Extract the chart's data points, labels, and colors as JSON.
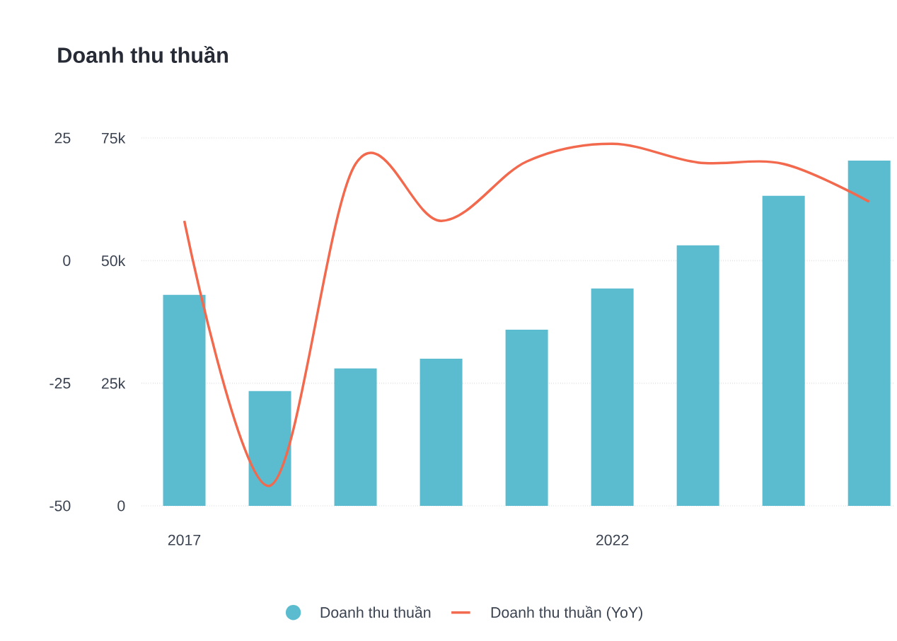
{
  "chart_data": {
    "type": "bar",
    "title": "Doanh thu thuần",
    "categories": [
      "2017",
      null,
      null,
      null,
      null,
      "2022",
      null,
      null,
      null
    ],
    "ylim": [
      0,
      75000
    ],
    "yticks": [
      0,
      {
        "value": 25000,
        "label": "25k"
      },
      {
        "value": 50000,
        "label": "50k"
      },
      {
        "value": 75000,
        "label": "75k"
      }
    ],
    "y2lim": [
      -50,
      25
    ],
    "y2ticks": [
      -50,
      -25,
      0,
      25
    ],
    "grid": "y",
    "legend": "bottom",
    "series": [
      {
        "name": "Doanh thu thuần",
        "color": "#5bbccf",
        "values": [
          43000,
          23400,
          28000,
          30000,
          35900,
          44300,
          53100,
          63200,
          70400
        ]
      },
      {
        "name": "Doanh thu thuần (YoY)",
        "type": "line",
        "axis": "y2",
        "color": "#f2694e",
        "values": [
          8.1,
          -45.9,
          19.7,
          8.1,
          20.2,
          23.8,
          20.0,
          19.7,
          12.0
        ]
      }
    ]
  }
}
